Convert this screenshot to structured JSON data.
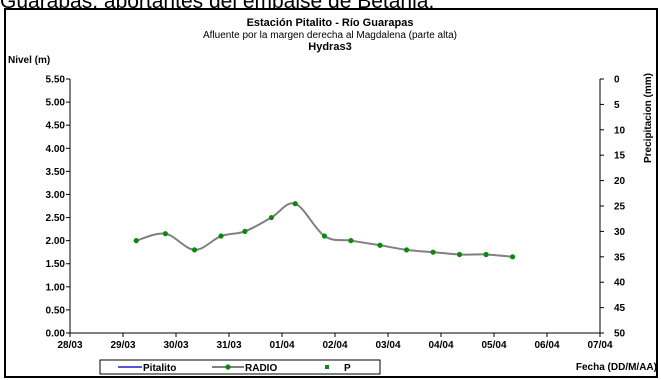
{
  "page": {
    "top_caption": "Guarapas, aportantes del embalse de Betania."
  },
  "chart_data": {
    "type": "line",
    "title": "Estación Pitalito  - Río Guarapas",
    "subtitle": "Afluente por la margen derecha al Magdalena (parte alta)",
    "subtitle2": "Hydras3",
    "ylabel": "Nivel (m)",
    "y2label": "Precipitacion (mm)",
    "xlabel": "Fecha (DD/M/AA)",
    "ylim": [
      0,
      5.5
    ],
    "y_ticks": [
      "0.00",
      "0.50",
      "1.00",
      "1.50",
      "2.00",
      "2.50",
      "3.00",
      "3.50",
      "4.00",
      "4.50",
      "5.00",
      "5.50"
    ],
    "y2lim": [
      0,
      50
    ],
    "y2_ticks": [
      "0",
      "5",
      "10",
      "15",
      "20",
      "25",
      "30",
      "35",
      "40",
      "45",
      "50"
    ],
    "y2_inverted": true,
    "x_ticks": [
      "28/03",
      "29/03",
      "30/03",
      "31/03",
      "01/04",
      "02/04",
      "03/04",
      "04/04",
      "05/04",
      "06/04",
      "07/04"
    ],
    "xlim": [
      0,
      10
    ],
    "grid": false,
    "legend_position": "bottom",
    "series": [
      {
        "name": "Pitalito",
        "color": "#1f1fbf",
        "style": "line",
        "x": [],
        "y": []
      },
      {
        "name": "RADIO",
        "color": "#808080",
        "marker_color": "#0a8a0a",
        "style": "line-marker",
        "x": [
          1.25,
          1.8,
          2.35,
          2.85,
          3.3,
          3.8,
          4.25,
          4.8,
          5.3,
          5.85,
          6.35,
          6.85,
          7.35,
          7.85,
          8.35
        ],
        "y": [
          2.0,
          2.15,
          1.8,
          2.1,
          2.2,
          2.5,
          2.8,
          2.1,
          2.0,
          1.9,
          1.8,
          1.75,
          1.7,
          1.7,
          1.65
        ]
      },
      {
        "name": "P",
        "color": "#0a8a0a",
        "style": "marker",
        "x": [],
        "y": []
      }
    ]
  }
}
